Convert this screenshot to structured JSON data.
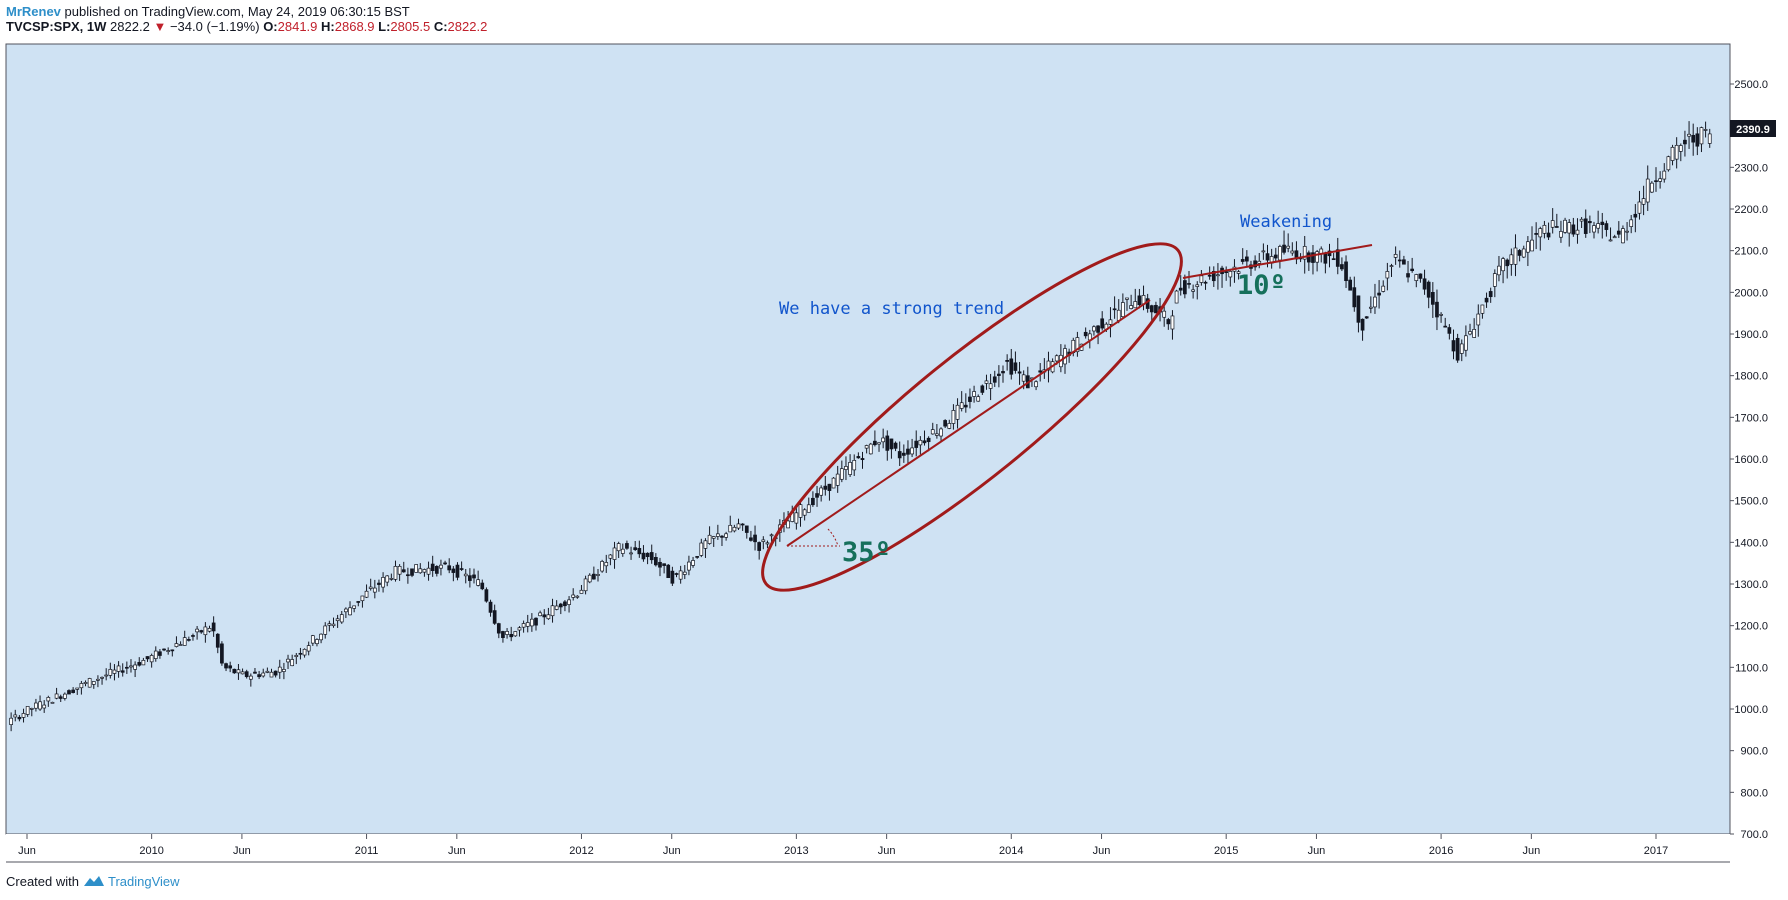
{
  "header": {
    "author": "MrRenev",
    "published": "published on TradingView.com, May 24, 2019 06:30:15 BST",
    "symbol": "TVCSP:SPX, 1W",
    "last": "2822.2",
    "change": "−34.0 (−1.19%)",
    "open_label": "O:",
    "open": "2841.9",
    "high_label": "H:",
    "high": "2868.9",
    "low_label": "L:",
    "low": "2805.5",
    "close_label": "C:",
    "close": "2822.2"
  },
  "footer": {
    "created": "Created with",
    "brand": "TradingView"
  },
  "colors": {
    "background": "#cfe2f3",
    "candle": "#131722",
    "annotation_red": "#a11b1b",
    "text_blue": "#1155cc",
    "angle_green": "#16705b"
  },
  "chart_data": {
    "type": "candlestick",
    "title": "",
    "xlabel": "",
    "ylabel": "",
    "ylim": [
      700,
      2600
    ],
    "x_ticks": [
      {
        "label": "Jun",
        "t": 2009.42
      },
      {
        "label": "2010",
        "t": 2010.0
      },
      {
        "label": "Jun",
        "t": 2010.42
      },
      {
        "label": "2011",
        "t": 2011.0
      },
      {
        "label": "Jun",
        "t": 2011.42
      },
      {
        "label": "2012",
        "t": 2012.0
      },
      {
        "label": "Jun",
        "t": 2012.42
      },
      {
        "label": "2013",
        "t": 2013.0
      },
      {
        "label": "Jun",
        "t": 2013.42
      },
      {
        "label": "2014",
        "t": 2014.0
      },
      {
        "label": "Jun",
        "t": 2014.42
      },
      {
        "label": "2015",
        "t": 2015.0
      },
      {
        "label": "Jun",
        "t": 2015.42
      },
      {
        "label": "2016",
        "t": 2016.0
      },
      {
        "label": "Jun",
        "t": 2016.42
      },
      {
        "label": "2017",
        "t": 2017.0
      }
    ],
    "y_ticks": [
      "2500.0",
      "2400.0",
      "2300.0",
      "2200.0",
      "2100.0",
      "2000.0",
      "1900.0",
      "1800.0",
      "1700.0",
      "1600.0",
      "1500.0",
      "1400.0",
      "1300.0",
      "1200.0",
      "1100.0",
      "1000.0",
      "900.0",
      "800.0",
      "700.0"
    ],
    "last_price_label": "2390.9",
    "price_path": [
      [
        2009.0,
        880
      ],
      [
        2009.2,
        920
      ],
      [
        2009.45,
        1000
      ],
      [
        2009.75,
        1070
      ],
      [
        2010.0,
        1120
      ],
      [
        2010.3,
        1200
      ],
      [
        2010.35,
        1100
      ],
      [
        2010.45,
        1080
      ],
      [
        2010.6,
        1090
      ],
      [
        2010.8,
        1180
      ],
      [
        2011.0,
        1270
      ],
      [
        2011.15,
        1330
      ],
      [
        2011.4,
        1340
      ],
      [
        2011.55,
        1300
      ],
      [
        2011.65,
        1170
      ],
      [
        2011.8,
        1210
      ],
      [
        2012.0,
        1280
      ],
      [
        2012.2,
        1390
      ],
      [
        2012.35,
        1360
      ],
      [
        2012.45,
        1310
      ],
      [
        2012.6,
        1400
      ],
      [
        2012.75,
        1440
      ],
      [
        2012.85,
        1390
      ],
      [
        2013.0,
        1460
      ],
      [
        2013.2,
        1550
      ],
      [
        2013.4,
        1650
      ],
      [
        2013.5,
        1610
      ],
      [
        2013.7,
        1680
      ],
      [
        2014.0,
        1830
      ],
      [
        2014.1,
        1780
      ],
      [
        2014.4,
        1910
      ],
      [
        2014.6,
        1990
      ],
      [
        2014.75,
        1930
      ],
      [
        2014.8,
        2010
      ],
      [
        2015.0,
        2050
      ],
      [
        2015.3,
        2100
      ],
      [
        2015.55,
        2080
      ],
      [
        2015.65,
        1920
      ],
      [
        2015.8,
        2080
      ],
      [
        2015.95,
        2010
      ],
      [
        2016.1,
        1850
      ],
      [
        2016.3,
        2060
      ],
      [
        2016.5,
        2150
      ],
      [
        2016.7,
        2160
      ],
      [
        2016.85,
        2130
      ],
      [
        2017.0,
        2270
      ],
      [
        2017.15,
        2360
      ],
      [
        2017.25,
        2380
      ]
    ],
    "annotations": [
      {
        "type": "text",
        "text": "We have a strong trend"
      },
      {
        "type": "text",
        "text": "Weakening"
      },
      {
        "type": "angle",
        "text": "35º"
      },
      {
        "type": "angle",
        "text": "10º"
      }
    ]
  }
}
